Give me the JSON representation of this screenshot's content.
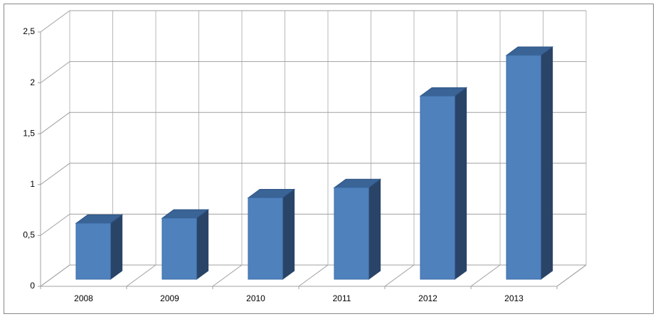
{
  "chart_data": {
    "type": "bar3d",
    "categories": [
      "2008",
      "2009",
      "2010",
      "2011",
      "2012",
      "2013"
    ],
    "values": [
      0.55,
      0.6,
      0.8,
      0.9,
      1.8,
      2.2
    ],
    "color": "#4f81bd",
    "ylim": [
      0,
      2.5
    ],
    "yticks": [
      0,
      {
        "value": 0.5,
        "label": "0,5"
      },
      1,
      {
        "value": 1.5,
        "label": "1,5"
      },
      2,
      {
        "value": 2.5,
        "label": "2,5"
      }
    ],
    "grid": true
  }
}
